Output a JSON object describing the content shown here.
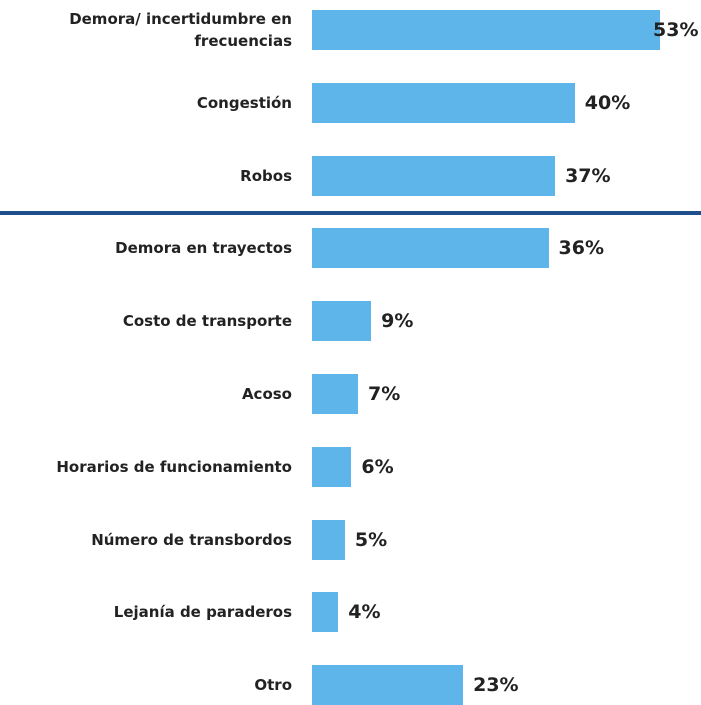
{
  "chart_data": {
    "type": "bar",
    "orientation": "horizontal",
    "categories": [
      "Demora/ incertidumbre en frecuencias",
      "Congestión",
      "Robos",
      "Demora en trayectos",
      "Costo de transporte",
      "Acoso",
      "Horarios de funcionamiento",
      "Número de transbordos",
      "Lejanía de paraderos",
      "Otro"
    ],
    "values": [
      53,
      40,
      37,
      36,
      9,
      7,
      6,
      5,
      4,
      23
    ],
    "value_labels": [
      "53%",
      "40%",
      "37%",
      "36%",
      "9%",
      "7%",
      "6%",
      "5%",
      "4%",
      "23%"
    ],
    "color": "#5db5e9"
  }
}
